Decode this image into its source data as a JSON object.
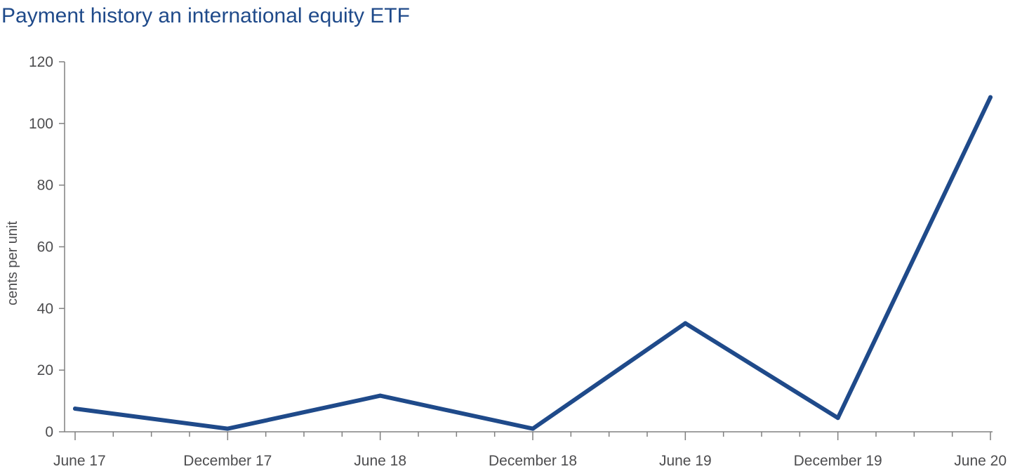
{
  "chart_data": {
    "type": "line",
    "title": "Payment history an international equity ETF",
    "xlabel": "",
    "ylabel": "cents per unit",
    "categories": [
      "June 17",
      "December 17",
      "June 18",
      "December 18",
      "June 19",
      "December 19",
      "June 20"
    ],
    "x": [
      "June 17",
      "",
      "",
      "",
      "December 17",
      "",
      "",
      "",
      "June 18",
      "",
      "",
      "",
      "December 18",
      "",
      "",
      "",
      "June 19",
      "",
      "",
      "",
      "December 19",
      "",
      "",
      "",
      "June 20"
    ],
    "series": [
      {
        "name": "",
        "values": [
          7.5,
          1.0,
          11.7,
          1.0,
          35.2,
          4.5,
          108.5
        ]
      }
    ],
    "ylim": [
      0,
      120
    ],
    "yticks": [
      0,
      20,
      40,
      60,
      80,
      100,
      120
    ],
    "grid": false,
    "legend": "none",
    "colors": {
      "line": "#1f4a8a",
      "axis": "#808080",
      "text": "#4d4d4f",
      "title": "#1f4a8a"
    }
  }
}
